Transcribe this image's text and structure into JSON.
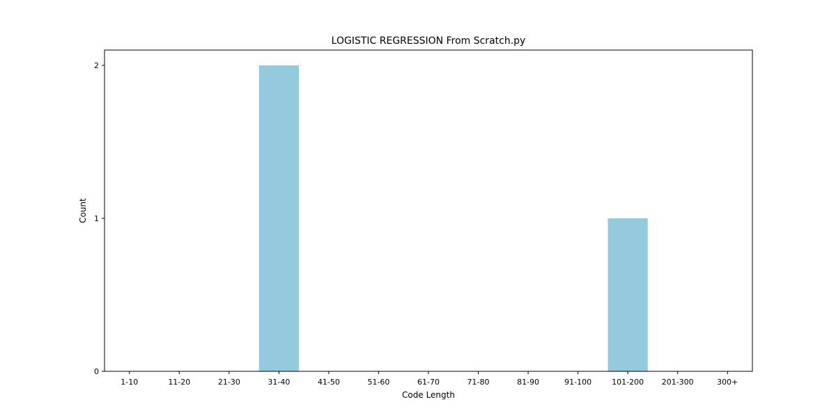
{
  "chart_data": {
    "type": "bar",
    "title": "LOGISTIC REGRESSION From Scratch.py",
    "xlabel": "Code Length",
    "ylabel": "Count",
    "categories": [
      "1-10",
      "11-20",
      "21-30",
      "31-40",
      "41-50",
      "51-60",
      "61-70",
      "71-80",
      "81-90",
      "91-100",
      "101-200",
      "201-300",
      "300+"
    ],
    "values": [
      0,
      0,
      0,
      2,
      0,
      0,
      0,
      0,
      0,
      0,
      1,
      0,
      0
    ],
    "ylim": [
      0,
      2.1
    ],
    "yticks": [
      0,
      1,
      2
    ],
    "grid": false,
    "legend": "none",
    "bar_color": "#95c9de",
    "axes_color": "#000000"
  }
}
